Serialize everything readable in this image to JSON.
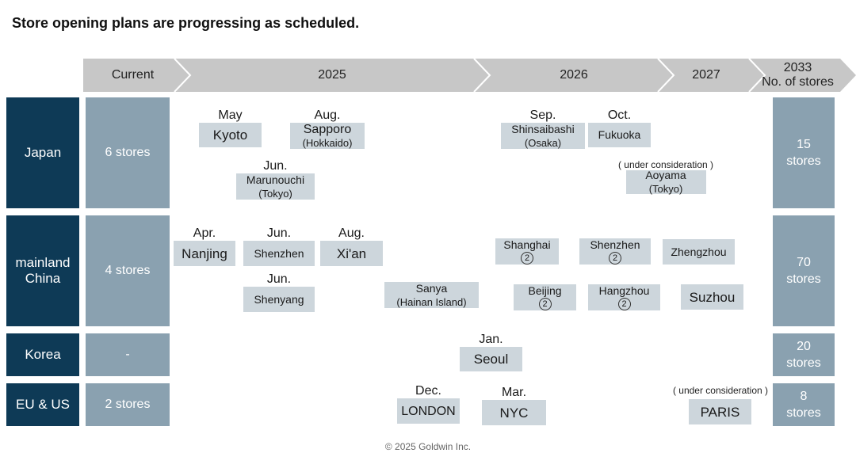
{
  "title": "Store opening plans are progressing as scheduled.",
  "header": {
    "current": "Current",
    "y2025": "2025",
    "y2026": "2026",
    "y2027": "2027",
    "y2033_line1": "2033",
    "y2033_line2": "No. of stores"
  },
  "colors": {
    "arrow": "#c7c7c7",
    "row_label": "#0e3a56",
    "count_box": "#8aa1b0",
    "store_box": "#cdd6dc"
  },
  "rows": {
    "japan": {
      "label": "Japan",
      "current": "6 stores",
      "total_line1": "15",
      "total_line2": "stores"
    },
    "china": {
      "label_line1": "mainland",
      "label_line2": "China",
      "current": "4 stores",
      "total_line1": "70",
      "total_line2": "stores"
    },
    "korea": {
      "label": "Korea",
      "current": "-",
      "total_line1": "20",
      "total_line2": "stores"
    },
    "euus": {
      "label": "EU & US",
      "current": "2 stores",
      "total_line1": "8",
      "total_line2": "stores"
    }
  },
  "stores": {
    "kyoto": {
      "month": "May",
      "name": "Kyoto"
    },
    "sapporo": {
      "month": "Aug.",
      "name": "Sapporo",
      "sub": "(Hokkaido)"
    },
    "marunouchi": {
      "month": "Jun.",
      "name": "Marunouchi",
      "sub": "(Tokyo)"
    },
    "shinsaibashi": {
      "month": "Sep.",
      "name": "Shinsaibashi",
      "sub": "(Osaka)"
    },
    "fukuoka": {
      "month": "Oct.",
      "name": "Fukuoka"
    },
    "aoyama": {
      "note": "( under consideration )",
      "name": "Aoyama",
      "sub": "(Tokyo)"
    },
    "nanjing": {
      "month": "Apr.",
      "name": "Nanjing"
    },
    "shenzhen_2025": {
      "month": "Jun.",
      "name": "Shenzhen"
    },
    "xian": {
      "month": "Aug.",
      "name": "Xi'an"
    },
    "shenyang": {
      "month": "Jun.",
      "name": "Shenyang"
    },
    "sanya": {
      "name": "Sanya",
      "sub": "(Hainan Island)"
    },
    "shanghai": {
      "name": "Shanghai",
      "count": "2"
    },
    "shenzhen_2026": {
      "name": "Shenzhen",
      "count": "2"
    },
    "zhengzhou": {
      "name": "Zhengzhou"
    },
    "beijing": {
      "name": "Beijing",
      "count": "2"
    },
    "hangzhou": {
      "name": "Hangzhou",
      "count": "2"
    },
    "suzhou": {
      "name": "Suzhou"
    },
    "seoul": {
      "month": "Jan.",
      "name": "Seoul"
    },
    "london": {
      "month": "Dec.",
      "name": "LONDON"
    },
    "nyc": {
      "month": "Mar.",
      "name": "NYC"
    },
    "paris": {
      "note": "( under consideration )",
      "name": "PARIS"
    }
  },
  "footer": "© 2025 Goldwin Inc."
}
